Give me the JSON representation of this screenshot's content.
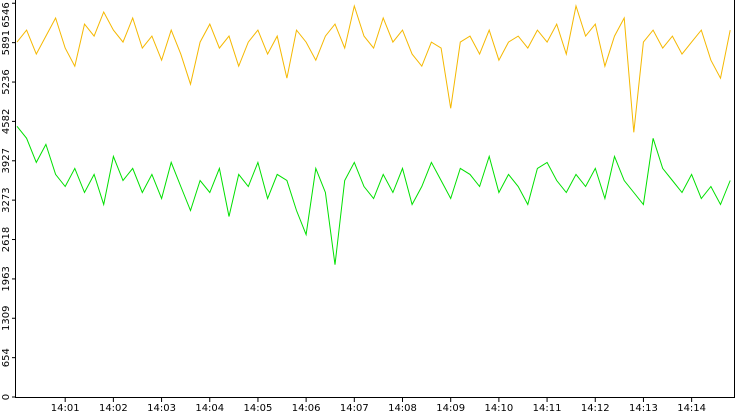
{
  "chart_data": {
    "type": "line",
    "x": [
      840.0,
      840.2,
      840.4,
      840.6,
      840.8,
      841.0,
      841.2,
      841.4,
      841.6,
      841.8,
      842.0,
      842.2,
      842.4,
      842.6,
      842.8,
      843.0,
      843.2,
      843.4,
      843.6,
      843.8,
      844.0,
      844.2,
      844.4,
      844.6,
      844.8,
      845.0,
      845.2,
      845.4,
      845.6,
      845.8,
      846.0,
      846.2,
      846.4,
      846.6,
      846.8,
      847.0,
      847.2,
      847.4,
      847.6,
      847.8,
      848.0,
      848.2,
      848.4,
      848.6,
      848.8,
      849.0,
      849.2,
      849.4,
      849.6,
      849.8,
      850.0,
      850.2,
      850.4,
      850.6,
      850.8,
      851.0,
      851.2,
      851.4,
      851.6,
      851.8,
      852.0,
      852.2,
      852.4,
      852.6,
      852.8,
      853.0,
      853.2,
      853.4,
      853.6,
      853.8,
      854.0,
      854.2,
      854.4,
      854.6,
      854.8
    ],
    "series": [
      {
        "color": "#f5b800",
        "values": [
          5900,
          6100,
          5700,
          6000,
          6300,
          5800,
          5500,
          6200,
          6000,
          6400,
          6100,
          5900,
          6300,
          5800,
          6000,
          5600,
          6100,
          5700,
          5200,
          5900,
          6200,
          5800,
          6000,
          5500,
          5900,
          6100,
          5700,
          6000,
          5300,
          6100,
          5900,
          5600,
          6000,
          6200,
          5800,
          6500,
          6000,
          5800,
          6300,
          5900,
          6100,
          5700,
          5500,
          5900,
          5800,
          4800,
          5900,
          6000,
          5700,
          6100,
          5600,
          5900,
          6000,
          5800,
          6100,
          5900,
          6200,
          5700,
          6500,
          6000,
          6200,
          5500,
          6000,
          6300,
          4400,
          5900,
          6100,
          5800,
          6000,
          5700,
          5900,
          6100,
          5600,
          5300,
          6100
        ]
      },
      {
        "color": "#00e000",
        "values": [
          4500,
          4300,
          3900,
          4200,
          3700,
          3500,
          3800,
          3400,
          3700,
          3200,
          4000,
          3600,
          3800,
          3400,
          3700,
          3300,
          3900,
          3500,
          3100,
          3600,
          3400,
          3800,
          3000,
          3700,
          3500,
          3900,
          3300,
          3700,
          3600,
          3100,
          2700,
          3800,
          3400,
          2200,
          3600,
          3900,
          3500,
          3300,
          3700,
          3400,
          3800,
          3200,
          3500,
          3900,
          3600,
          3300,
          3800,
          3700,
          3500,
          4000,
          3400,
          3700,
          3500,
          3200,
          3800,
          3900,
          3600,
          3400,
          3700,
          3500,
          3800,
          3300,
          4000,
          3600,
          3400,
          3200,
          4300,
          3800,
          3600,
          3400,
          3700,
          3300,
          3500,
          3200,
          3600
        ]
      }
    ],
    "xlim": [
      840,
      854.9
    ],
    "xticks": [
      {
        "value": 841,
        "label": "14:01"
      },
      {
        "value": 842,
        "label": "14:02"
      },
      {
        "value": 843,
        "label": "14:03"
      },
      {
        "value": 844,
        "label": "14:04"
      },
      {
        "value": 845,
        "label": "14:05"
      },
      {
        "value": 846,
        "label": "14:06"
      },
      {
        "value": 847,
        "label": "14:07"
      },
      {
        "value": 848,
        "label": "14:08"
      },
      {
        "value": 849,
        "label": "14:09"
      },
      {
        "value": 850,
        "label": "14:10"
      },
      {
        "value": 851,
        "label": "14:11"
      },
      {
        "value": 852,
        "label": "14:12"
      },
      {
        "value": 853,
        "label": "14:13"
      },
      {
        "value": 854,
        "label": "14:14"
      }
    ],
    "ylim": [
      0,
      6600
    ],
    "yticks": [
      0,
      654,
      1309,
      1963,
      2618,
      3273,
      3927,
      4582,
      5236,
      5891,
      6546
    ]
  }
}
